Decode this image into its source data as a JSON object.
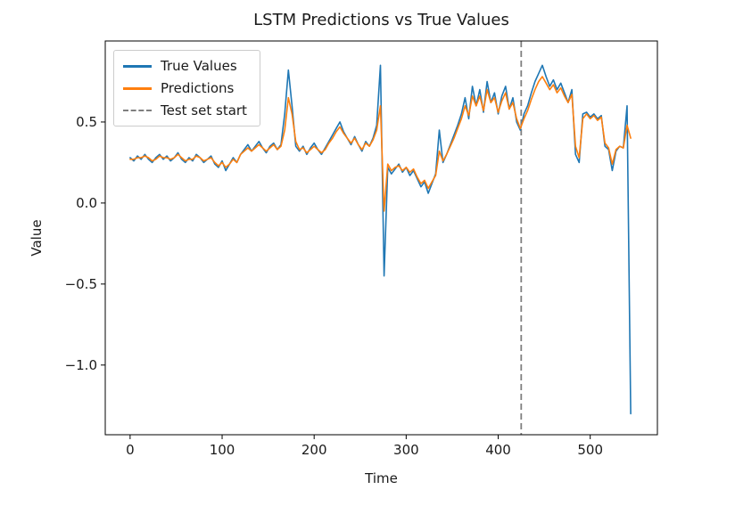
{
  "chart_data": {
    "type": "line",
    "title": "LSTM Predictions vs True Values",
    "xlabel": "Time",
    "ylabel": "Value",
    "xlim": [
      -27,
      573
    ],
    "ylim": [
      -1.43,
      1.0
    ],
    "xticks": [
      0,
      100,
      200,
      300,
      400,
      500
    ],
    "yticks": [
      -1.0,
      -0.5,
      0.0,
      0.5
    ],
    "grid": false,
    "legend_position": "upper-left",
    "vline": {
      "x": 425,
      "label": "Test set start",
      "color": "#7f7f7f",
      "style": "dashed"
    },
    "x": [
      0,
      4,
      8,
      12,
      16,
      20,
      24,
      28,
      32,
      36,
      40,
      44,
      48,
      52,
      56,
      60,
      64,
      68,
      72,
      76,
      80,
      84,
      88,
      92,
      96,
      100,
      104,
      108,
      112,
      116,
      120,
      124,
      128,
      132,
      136,
      140,
      144,
      148,
      152,
      156,
      160,
      164,
      168,
      172,
      176,
      180,
      184,
      188,
      192,
      196,
      200,
      204,
      208,
      212,
      216,
      220,
      224,
      228,
      232,
      236,
      240,
      244,
      248,
      252,
      256,
      260,
      264,
      268,
      272,
      276,
      280,
      284,
      288,
      292,
      296,
      300,
      304,
      308,
      312,
      316,
      320,
      324,
      328,
      332,
      336,
      340,
      344,
      348,
      352,
      356,
      360,
      364,
      368,
      372,
      376,
      380,
      384,
      388,
      392,
      396,
      400,
      404,
      408,
      412,
      416,
      420,
      424,
      428,
      432,
      436,
      440,
      444,
      448,
      452,
      456,
      460,
      464,
      468,
      472,
      476,
      480,
      484,
      488,
      492,
      496,
      500,
      504,
      508,
      512,
      516,
      520,
      524,
      528,
      532,
      536,
      540,
      544
    ],
    "series": [
      {
        "name": "True Values",
        "color": "#1f77b4",
        "values": [
          0.28,
          0.26,
          0.29,
          0.27,
          0.3,
          0.27,
          0.25,
          0.28,
          0.3,
          0.27,
          0.29,
          0.26,
          0.28,
          0.31,
          0.27,
          0.25,
          0.28,
          0.26,
          0.3,
          0.28,
          0.25,
          0.27,
          0.29,
          0.24,
          0.22,
          0.26,
          0.2,
          0.24,
          0.28,
          0.25,
          0.3,
          0.33,
          0.36,
          0.32,
          0.35,
          0.38,
          0.34,
          0.31,
          0.35,
          0.37,
          0.33,
          0.36,
          0.55,
          0.82,
          0.6,
          0.35,
          0.32,
          0.35,
          0.3,
          0.34,
          0.37,
          0.33,
          0.3,
          0.34,
          0.38,
          0.42,
          0.46,
          0.5,
          0.44,
          0.4,
          0.36,
          0.41,
          0.36,
          0.32,
          0.38,
          0.35,
          0.4,
          0.48,
          0.85,
          -0.45,
          0.22,
          0.18,
          0.21,
          0.24,
          0.19,
          0.22,
          0.17,
          0.2,
          0.15,
          0.1,
          0.13,
          0.06,
          0.12,
          0.18,
          0.45,
          0.25,
          0.3,
          0.36,
          0.42,
          0.48,
          0.55,
          0.65,
          0.52,
          0.72,
          0.6,
          0.7,
          0.56,
          0.75,
          0.62,
          0.68,
          0.55,
          0.66,
          0.72,
          0.58,
          0.65,
          0.5,
          0.45,
          0.55,
          0.6,
          0.68,
          0.75,
          0.8,
          0.85,
          0.78,
          0.72,
          0.76,
          0.7,
          0.74,
          0.68,
          0.62,
          0.7,
          0.3,
          0.25,
          0.55,
          0.56,
          0.53,
          0.55,
          0.52,
          0.54,
          0.35,
          0.33,
          0.2,
          0.32,
          0.35,
          0.34,
          0.6,
          -1.3
        ]
      },
      {
        "name": "Predictions",
        "color": "#ff7f0e",
        "values": [
          0.27,
          0.27,
          0.28,
          0.28,
          0.29,
          0.28,
          0.26,
          0.27,
          0.29,
          0.28,
          0.28,
          0.27,
          0.28,
          0.3,
          0.28,
          0.26,
          0.27,
          0.27,
          0.29,
          0.28,
          0.26,
          0.27,
          0.28,
          0.25,
          0.23,
          0.25,
          0.22,
          0.24,
          0.27,
          0.25,
          0.3,
          0.32,
          0.34,
          0.32,
          0.34,
          0.36,
          0.34,
          0.32,
          0.34,
          0.36,
          0.33,
          0.35,
          0.45,
          0.65,
          0.55,
          0.38,
          0.33,
          0.34,
          0.31,
          0.33,
          0.35,
          0.33,
          0.31,
          0.33,
          0.37,
          0.4,
          0.44,
          0.47,
          0.43,
          0.4,
          0.37,
          0.4,
          0.36,
          0.33,
          0.37,
          0.35,
          0.39,
          0.45,
          0.6,
          -0.05,
          0.24,
          0.2,
          0.22,
          0.23,
          0.2,
          0.22,
          0.19,
          0.21,
          0.16,
          0.12,
          0.14,
          0.09,
          0.13,
          0.17,
          0.32,
          0.26,
          0.3,
          0.35,
          0.4,
          0.46,
          0.52,
          0.6,
          0.54,
          0.66,
          0.6,
          0.66,
          0.57,
          0.7,
          0.62,
          0.65,
          0.56,
          0.63,
          0.68,
          0.58,
          0.62,
          0.52,
          0.46,
          0.52,
          0.57,
          0.64,
          0.7,
          0.75,
          0.78,
          0.74,
          0.7,
          0.73,
          0.68,
          0.71,
          0.66,
          0.62,
          0.67,
          0.35,
          0.28,
          0.52,
          0.55,
          0.52,
          0.54,
          0.51,
          0.53,
          0.37,
          0.34,
          0.24,
          0.33,
          0.35,
          0.34,
          0.48,
          0.4
        ]
      }
    ]
  }
}
